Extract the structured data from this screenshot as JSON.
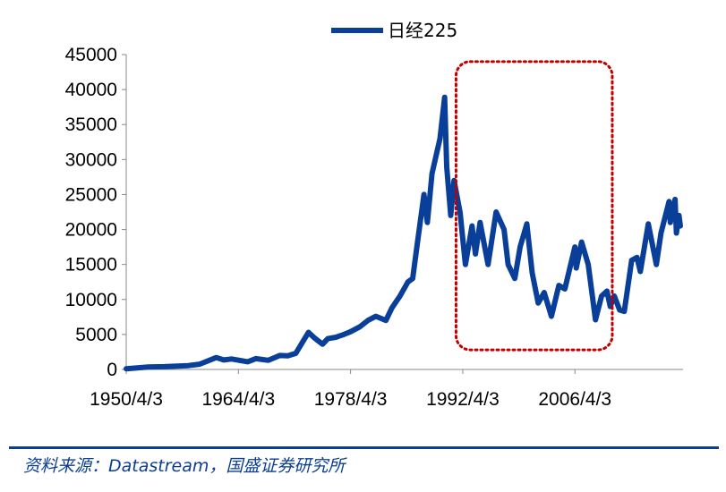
{
  "chart_data": {
    "type": "line",
    "series": [
      {
        "name": "日经225",
        "color": "#0a3f99",
        "points": [
          [
            "1950/4/3",
            100
          ],
          [
            "1953/1/1",
            350
          ],
          [
            "1955/1/1",
            400
          ],
          [
            "1957/1/1",
            500
          ],
          [
            "1958/1/1",
            550
          ],
          [
            "1959/6/1",
            750
          ],
          [
            "1961/7/1",
            1700
          ],
          [
            "1962/6/1",
            1350
          ],
          [
            "1963/6/1",
            1500
          ],
          [
            "1965/6/1",
            1100
          ],
          [
            "1966/6/1",
            1550
          ],
          [
            "1968/1/1",
            1300
          ],
          [
            "1969/6/1",
            2000
          ],
          [
            "1970/6/1",
            1950
          ],
          [
            "1971/6/1",
            2300
          ],
          [
            "1972/6/1",
            4200
          ],
          [
            "1973/1/1",
            5300
          ],
          [
            "1973/10/1",
            4500
          ],
          [
            "1974/10/1",
            3600
          ],
          [
            "1975/6/1",
            4400
          ],
          [
            "1976/6/1",
            4600
          ],
          [
            "1977/6/1",
            5000
          ],
          [
            "1978/4/3",
            5400
          ],
          [
            "1979/6/1",
            6100
          ],
          [
            "1980/6/1",
            7000
          ],
          [
            "1981/6/1",
            7600
          ],
          [
            "1982/9/1",
            7000
          ],
          [
            "1983/6/1",
            8800
          ],
          [
            "1984/6/1",
            10500
          ],
          [
            "1985/6/1",
            12500
          ],
          [
            "1986/1/1",
            13000
          ],
          [
            "1986/8/1",
            18000
          ],
          [
            "1987/6/1",
            25000
          ],
          [
            "1987/11/1",
            21000
          ],
          [
            "1988/6/1",
            28000
          ],
          [
            "1989/6/1",
            33000
          ],
          [
            "1989/12/29",
            38900
          ],
          [
            "1990/4/1",
            29000
          ],
          [
            "1990/10/1",
            22000
          ],
          [
            "1991/3/1",
            27000
          ],
          [
            "1991/12/1",
            22500
          ],
          [
            "1992/8/1",
            15000
          ],
          [
            "1993/6/1",
            20500
          ],
          [
            "1993/11/1",
            16500
          ],
          [
            "1994/6/1",
            21000
          ],
          [
            "1995/6/1",
            15000
          ],
          [
            "1996/6/1",
            22500
          ],
          [
            "1997/6/1",
            20000
          ],
          [
            "1997/12/1",
            15000
          ],
          [
            "1998/10/1",
            13000
          ],
          [
            "1999/6/1",
            17500
          ],
          [
            "2000/4/1",
            20800
          ],
          [
            "2000/12/1",
            13800
          ],
          [
            "2001/9/1",
            9500
          ],
          [
            "2002/6/1",
            11000
          ],
          [
            "2003/4/28",
            7600
          ],
          [
            "2004/4/1",
            12000
          ],
          [
            "2005/1/1",
            11500
          ],
          [
            "2006/4/3",
            17500
          ],
          [
            "2006/6/1",
            14500
          ],
          [
            "2007/2/1",
            18200
          ],
          [
            "2007/12/1",
            15000
          ],
          [
            "2008/10/27",
            7100
          ],
          [
            "2009/8/1",
            10500
          ],
          [
            "2010/4/1",
            11200
          ],
          [
            "2010/9/1",
            9000
          ],
          [
            "2011/3/1",
            10500
          ],
          [
            "2011/11/1",
            8500
          ],
          [
            "2012/6/1",
            8300
          ],
          [
            "2013/5/1",
            15600
          ],
          [
            "2014/1/1",
            16000
          ],
          [
            "2014/6/1",
            14000
          ],
          [
            "2015/6/1",
            20800
          ],
          [
            "2016/6/1",
            15000
          ],
          [
            "2017/1/1",
            19500
          ],
          [
            "2018/1/1",
            24000
          ],
          [
            "2018/3/1",
            21000
          ],
          [
            "2018/10/1",
            24300
          ],
          [
            "2018/12/1",
            19500
          ],
          [
            "2019/4/1",
            22000
          ],
          [
            "2019/6/1",
            20500
          ]
        ]
      }
    ],
    "xaxis": {
      "type": "date",
      "range": [
        "1950/4/3",
        "2019/9/30"
      ],
      "ticks": [
        "1950/4/3",
        "1964/4/3",
        "1978/4/3",
        "1992/4/3",
        "2006/4/3"
      ]
    },
    "yaxis": {
      "range": [
        0,
        45000
      ],
      "ticks": [
        0,
        5000,
        10000,
        15000,
        20000,
        25000,
        30000,
        35000,
        40000,
        45000
      ]
    },
    "legend": {
      "placement": "top-center",
      "label": "日经225"
    },
    "annotation": {
      "type": "dotted-rounded-rectangle",
      "color": "#c00000",
      "from": "1991/6/1",
      "to": "2010/12/1",
      "yrange": [
        2800,
        44000
      ]
    },
    "grid": false
  },
  "source": "资料来源：Datastream，国盛证券研究所"
}
